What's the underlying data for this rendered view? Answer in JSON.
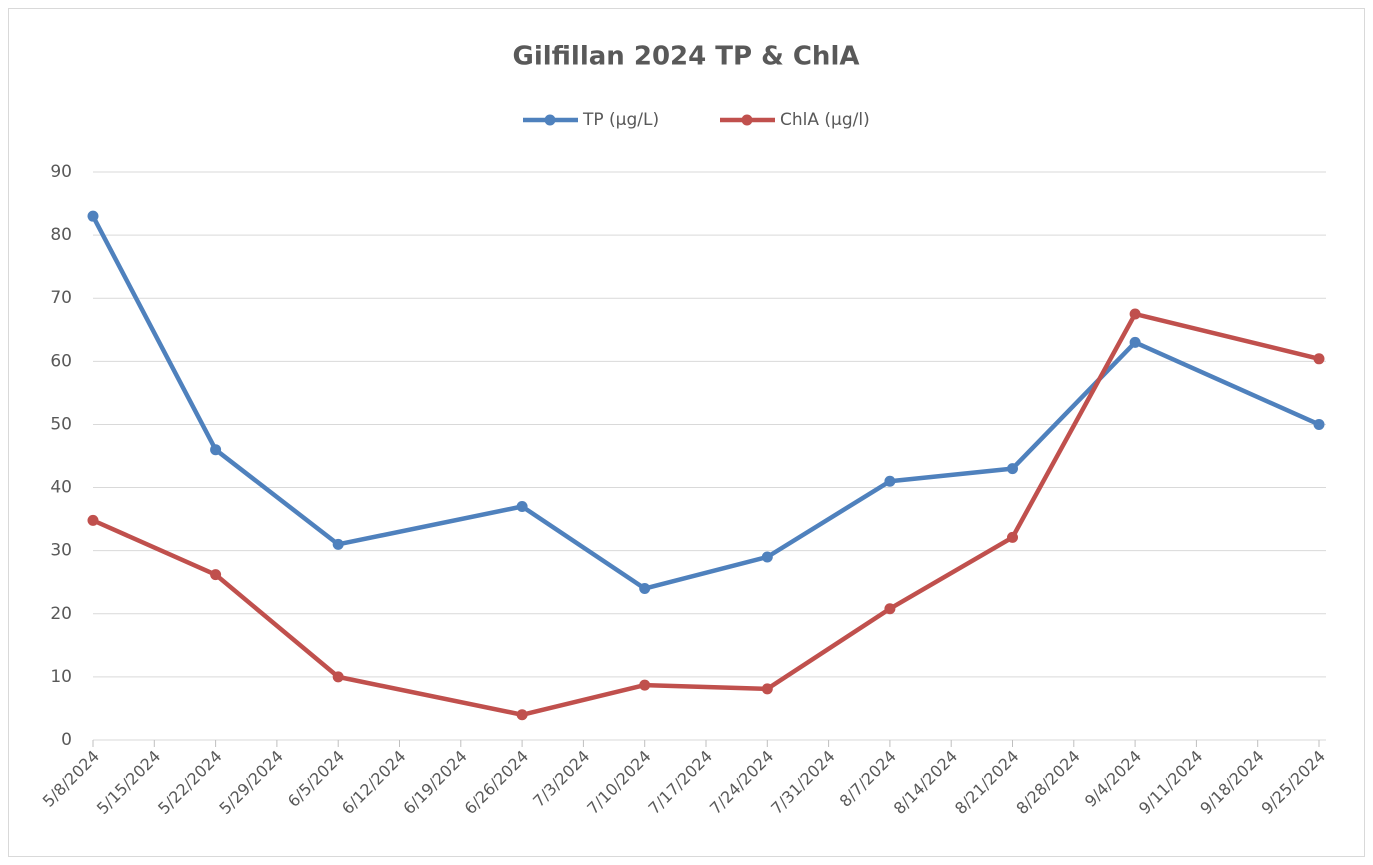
{
  "chart_data": {
    "type": "line",
    "title": "Gilfillan 2024 TP & ChlA",
    "x": [
      "5/8/2024",
      "5/22/2024",
      "6/5/2024",
      "6/26/2024",
      "7/10/2024",
      "7/24/2024",
      "8/7/2024",
      "8/21/2024",
      "9/4/2024",
      "9/25/2024"
    ],
    "series": [
      {
        "name": "TP (µg/L)",
        "color": "#4f81bd",
        "values": [
          83,
          46,
          31,
          37,
          24,
          29,
          41,
          43,
          63,
          50
        ]
      },
      {
        "name": "ChlA (µg/l)",
        "color": "#c0504d",
        "values": [
          34.8,
          26.2,
          10,
          4,
          8.7,
          8.1,
          20.8,
          32.1,
          67.5,
          60.4
        ]
      }
    ],
    "xlim": [
      "5/8/2024",
      "9/25/2024"
    ],
    "xticks": [
      "5/8/2024",
      "5/15/2024",
      "5/22/2024",
      "5/29/2024",
      "6/5/2024",
      "6/12/2024",
      "6/19/2024",
      "6/26/2024",
      "7/3/2024",
      "7/10/2024",
      "7/17/2024",
      "7/24/2024",
      "7/31/2024",
      "8/7/2024",
      "8/14/2024",
      "8/21/2024",
      "8/28/2024",
      "9/4/2024",
      "9/11/2024",
      "9/18/2024",
      "9/25/2024"
    ],
    "ylim": [
      0,
      90
    ],
    "yticks": [
      0,
      10,
      20,
      30,
      40,
      50,
      60,
      70,
      80,
      90
    ],
    "grid": true,
    "legend": "top"
  }
}
